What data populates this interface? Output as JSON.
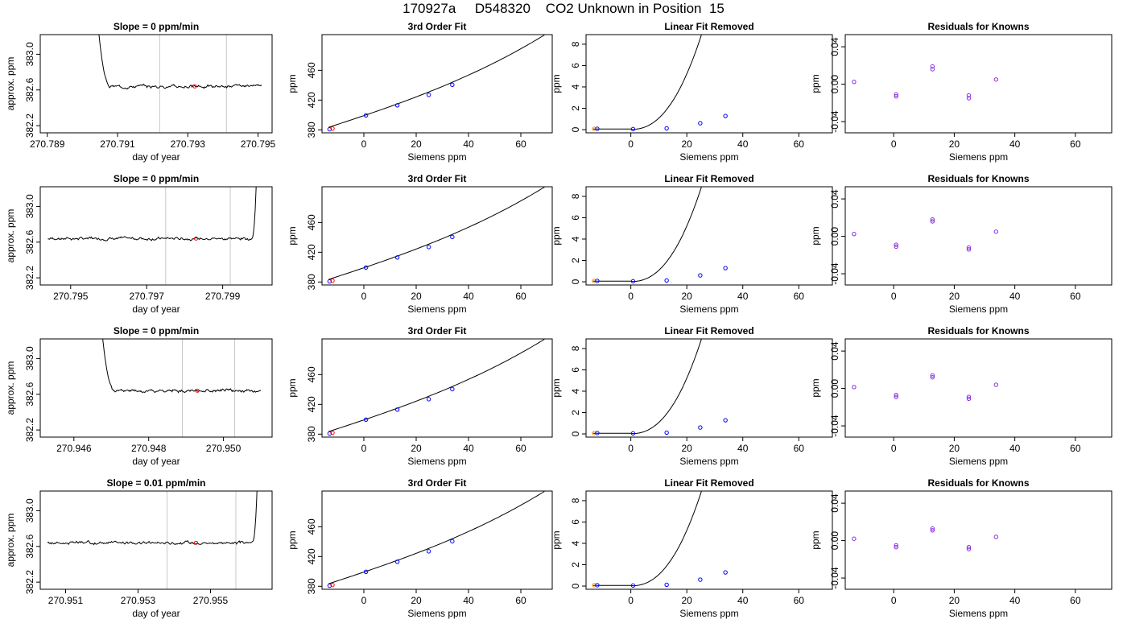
{
  "title": "170927a     D548320    CO2 Unknown in Position  15",
  "colors": {
    "trace": "#000000",
    "vline": "#c8c8c8",
    "point_blue": "#0000ff",
    "point_red": "#ff0000",
    "point_orange": "#ff8c00",
    "point_purple": "#8a2be2"
  },
  "chart_data": [
    {
      "type": "line",
      "title": "Slope =  0  ppm/min",
      "xlabel": "day of year",
      "ylabel": "approx. ppm",
      "xlim": [
        270.7888,
        270.7954
      ],
      "ylim": [
        382.12,
        383.22
      ],
      "xticks": [
        "270.789",
        "270.791",
        "270.793",
        "270.795"
      ],
      "yticks": [
        "382.2",
        "382.6",
        "383.0"
      ],
      "vlines": [
        270.7922,
        270.7941
      ],
      "trace": {
        "start": 270.7897,
        "end": 270.7951,
        "base": 382.64,
        "lead": "high",
        "edge": 270.7904,
        "seed": 3
      },
      "marker": {
        "x": 270.7932,
        "y": 382.64
      }
    },
    {
      "type": "scatter",
      "title": "3rd Order Fit",
      "xlabel": "Siemens ppm",
      "ylabel": "ppm",
      "xlim": [
        -16,
        72
      ],
      "ylim": [
        376,
        508
      ],
      "xticks": [
        "0",
        "20",
        "40",
        "60"
      ],
      "yticks": [
        "380",
        "420",
        "460"
      ],
      "curve": {
        "kind": "fit",
        "x": [
          -13.5,
          69
        ]
      },
      "points": [
        {
          "x": -13.1,
          "y": 380.8,
          "color": "#0000ff"
        },
        {
          "x": -12.0,
          "y": 381.8,
          "color": "#ff0000"
        },
        {
          "x": 0.8,
          "y": 399.5,
          "color": "#0000ff"
        },
        {
          "x": 12.8,
          "y": 413.0,
          "color": "#0000ff"
        },
        {
          "x": 24.8,
          "y": 427.0,
          "color": "#0000ff"
        },
        {
          "x": 33.8,
          "y": 440.5,
          "color": "#0000ff"
        }
      ]
    },
    {
      "type": "scatter",
      "title": "Linear Fit Removed",
      "xlabel": "Siemens ppm",
      "ylabel": "ppm",
      "xlim": [
        -16,
        72
      ],
      "ylim": [
        -0.3,
        8.9
      ],
      "xticks": [
        "0",
        "20",
        "40",
        "60"
      ],
      "yticks": [
        "0",
        "2",
        "4",
        "6",
        "8"
      ],
      "curve": {
        "kind": "cubic",
        "x": [
          -13.5,
          69
        ]
      },
      "points": [
        {
          "x": -13.1,
          "y": 0.08,
          "color": "#ff8c00"
        },
        {
          "x": -12.0,
          "y": 0.08,
          "color": "#0000ff"
        },
        {
          "x": 0.8,
          "y": 0.05,
          "color": "#0000ff"
        },
        {
          "x": 12.8,
          "y": 0.12,
          "color": "#0000ff"
        },
        {
          "x": 24.8,
          "y": 0.6,
          "color": "#0000ff"
        },
        {
          "x": 33.8,
          "y": 1.28,
          "color": "#0000ff"
        }
      ]
    },
    {
      "type": "scatter",
      "title": "Residuals for Knowns",
      "xlabel": "Siemens ppm",
      "ylabel": "ppm",
      "xlim": [
        -16,
        72
      ],
      "ylim": [
        -0.052,
        0.053
      ],
      "xticks": [
        "0",
        "20",
        "40",
        "60"
      ],
      "yticks": [
        "-0.04",
        "0.00",
        "0.04"
      ],
      "points": [
        {
          "x": -13.1,
          "y": 0.0025,
          "color": "#8a2be2"
        },
        {
          "x": 0.8,
          "y": -0.011,
          "color": "#8a2be2"
        },
        {
          "x": 0.8,
          "y": -0.013,
          "color": "#8a2be2"
        },
        {
          "x": 12.8,
          "y": 0.019,
          "color": "#8a2be2"
        },
        {
          "x": 12.8,
          "y": 0.016,
          "color": "#8a2be2"
        },
        {
          "x": 24.8,
          "y": -0.012,
          "color": "#8a2be2"
        },
        {
          "x": 24.8,
          "y": -0.015,
          "color": "#8a2be2"
        },
        {
          "x": 33.8,
          "y": 0.005,
          "color": "#8a2be2"
        }
      ]
    },
    {
      "type": "line",
      "title": "Slope =  0  ppm/min",
      "xlabel": "day of year",
      "ylabel": "approx. ppm",
      "xlim": [
        270.7942,
        270.8003
      ],
      "ylim": [
        382.12,
        383.22
      ],
      "xticks": [
        "270.795",
        "270.797",
        "270.799"
      ],
      "yticks": [
        "382.2",
        "382.6",
        "383.0"
      ],
      "vlines": [
        270.7975,
        270.7992
      ],
      "trace": {
        "start": 270.7944,
        "end": 270.7999,
        "base": 382.64,
        "lead": "none",
        "tail": "high",
        "edge": 270.7998,
        "seed": 7
      },
      "marker": {
        "x": 270.7983,
        "y": 382.64
      }
    },
    {
      "type": "scatter",
      "title": "3rd Order Fit",
      "xlabel": "Siemens ppm",
      "ylabel": "ppm",
      "xlim": [
        -16,
        72
      ],
      "ylim": [
        376,
        508
      ],
      "xticks": [
        "0",
        "20",
        "40",
        "60"
      ],
      "yticks": [
        "380",
        "420",
        "460"
      ],
      "curve": {
        "kind": "fit",
        "x": [
          -13.5,
          69
        ]
      },
      "points": [
        {
          "x": -13.1,
          "y": 380.8,
          "color": "#0000ff"
        },
        {
          "x": -12.0,
          "y": 381.8,
          "color": "#ff0000"
        },
        {
          "x": 0.8,
          "y": 399.5,
          "color": "#0000ff"
        },
        {
          "x": 12.8,
          "y": 413.0,
          "color": "#0000ff"
        },
        {
          "x": 24.8,
          "y": 427.0,
          "color": "#0000ff"
        },
        {
          "x": 33.8,
          "y": 440.5,
          "color": "#0000ff"
        }
      ]
    },
    {
      "type": "scatter",
      "title": "Linear Fit Removed",
      "xlabel": "Siemens ppm",
      "ylabel": "ppm",
      "xlim": [
        -16,
        72
      ],
      "ylim": [
        -0.3,
        8.9
      ],
      "xticks": [
        "0",
        "20",
        "40",
        "60"
      ],
      "yticks": [
        "0",
        "2",
        "4",
        "6",
        "8"
      ],
      "curve": {
        "kind": "cubic",
        "x": [
          -13.5,
          69
        ]
      },
      "points": [
        {
          "x": -13.1,
          "y": 0.08,
          "color": "#ff8c00"
        },
        {
          "x": -12.0,
          "y": 0.08,
          "color": "#0000ff"
        },
        {
          "x": 0.8,
          "y": 0.05,
          "color": "#0000ff"
        },
        {
          "x": 12.8,
          "y": 0.12,
          "color": "#0000ff"
        },
        {
          "x": 24.8,
          "y": 0.6,
          "color": "#0000ff"
        },
        {
          "x": 33.8,
          "y": 1.28,
          "color": "#0000ff"
        }
      ]
    },
    {
      "type": "scatter",
      "title": "Residuals for Knowns",
      "xlabel": "Siemens ppm",
      "ylabel": "ppm",
      "xlim": [
        -16,
        72
      ],
      "ylim": [
        -0.052,
        0.053
      ],
      "xticks": [
        "0",
        "20",
        "40",
        "60"
      ],
      "yticks": [
        "-0.04",
        "0.00",
        "0.04"
      ],
      "points": [
        {
          "x": -13.1,
          "y": 0.0025,
          "color": "#8a2be2"
        },
        {
          "x": 0.8,
          "y": -0.009,
          "color": "#8a2be2"
        },
        {
          "x": 0.8,
          "y": -0.011,
          "color": "#8a2be2"
        },
        {
          "x": 12.8,
          "y": 0.018,
          "color": "#8a2be2"
        },
        {
          "x": 12.8,
          "y": 0.016,
          "color": "#8a2be2"
        },
        {
          "x": 24.8,
          "y": -0.012,
          "color": "#8a2be2"
        },
        {
          "x": 24.8,
          "y": -0.014,
          "color": "#8a2be2"
        },
        {
          "x": 33.8,
          "y": 0.005,
          "color": "#8a2be2"
        }
      ]
    },
    {
      "type": "line",
      "title": "Slope =  0  ppm/min",
      "xlabel": "day of year",
      "ylabel": "approx. ppm",
      "xlim": [
        270.9451,
        270.9513
      ],
      "ylim": [
        382.12,
        383.22
      ],
      "xticks": [
        "270.946",
        "270.948",
        "270.950"
      ],
      "yticks": [
        "382.2",
        "382.6",
        "383.0"
      ],
      "vlines": [
        270.9489,
        270.9503
      ],
      "trace": {
        "start": 270.946,
        "end": 270.951,
        "base": 382.64,
        "lead": "high",
        "edge": 270.9467,
        "seed": 11
      },
      "marker": {
        "x": 270.9493,
        "y": 382.64
      }
    },
    {
      "type": "scatter",
      "title": "3rd Order Fit",
      "xlabel": "Siemens ppm",
      "ylabel": "ppm",
      "xlim": [
        -16,
        72
      ],
      "ylim": [
        376,
        508
      ],
      "xticks": [
        "0",
        "20",
        "40",
        "60"
      ],
      "yticks": [
        "380",
        "420",
        "460"
      ],
      "curve": {
        "kind": "fit",
        "x": [
          -13.5,
          69
        ]
      },
      "points": [
        {
          "x": -13.1,
          "y": 380.8,
          "color": "#0000ff"
        },
        {
          "x": -12.0,
          "y": 381.8,
          "color": "#ff0000"
        },
        {
          "x": 0.8,
          "y": 399.5,
          "color": "#0000ff"
        },
        {
          "x": 12.8,
          "y": 413.0,
          "color": "#0000ff"
        },
        {
          "x": 24.8,
          "y": 427.0,
          "color": "#0000ff"
        },
        {
          "x": 33.8,
          "y": 440.5,
          "color": "#0000ff"
        }
      ]
    },
    {
      "type": "scatter",
      "title": "Linear Fit Removed",
      "xlabel": "Siemens ppm",
      "ylabel": "ppm",
      "xlim": [
        -16,
        72
      ],
      "ylim": [
        -0.3,
        8.9
      ],
      "xticks": [
        "0",
        "20",
        "40",
        "60"
      ],
      "yticks": [
        "0",
        "2",
        "4",
        "6",
        "8"
      ],
      "curve": {
        "kind": "cubic",
        "x": [
          -13.5,
          69
        ]
      },
      "points": [
        {
          "x": -13.1,
          "y": 0.08,
          "color": "#ff8c00"
        },
        {
          "x": -12.0,
          "y": 0.08,
          "color": "#0000ff"
        },
        {
          "x": 0.8,
          "y": 0.05,
          "color": "#0000ff"
        },
        {
          "x": 12.8,
          "y": 0.12,
          "color": "#0000ff"
        },
        {
          "x": 24.8,
          "y": 0.6,
          "color": "#0000ff"
        },
        {
          "x": 33.8,
          "y": 1.28,
          "color": "#0000ff"
        }
      ]
    },
    {
      "type": "scatter",
      "title": "Residuals for Knowns",
      "xlabel": "Siemens ppm",
      "ylabel": "ppm",
      "xlim": [
        -16,
        72
      ],
      "ylim": [
        -0.052,
        0.053
      ],
      "xticks": [
        "0",
        "20",
        "40",
        "60"
      ],
      "yticks": [
        "-0.04",
        "0.00",
        "0.04"
      ],
      "points": [
        {
          "x": -13.1,
          "y": 0.0015,
          "color": "#8a2be2"
        },
        {
          "x": 0.8,
          "y": -0.007,
          "color": "#8a2be2"
        },
        {
          "x": 0.8,
          "y": -0.009,
          "color": "#8a2be2"
        },
        {
          "x": 12.8,
          "y": 0.014,
          "color": "#8a2be2"
        },
        {
          "x": 12.8,
          "y": 0.012,
          "color": "#8a2be2"
        },
        {
          "x": 24.8,
          "y": -0.009,
          "color": "#8a2be2"
        },
        {
          "x": 24.8,
          "y": -0.011,
          "color": "#8a2be2"
        },
        {
          "x": 33.8,
          "y": 0.004,
          "color": "#8a2be2"
        }
      ]
    },
    {
      "type": "line",
      "title": "Slope =  0.01  ppm/min",
      "xlabel": "day of year",
      "ylabel": "approx. ppm",
      "xlim": [
        270.9503,
        270.9567
      ],
      "ylim": [
        382.12,
        383.22
      ],
      "xticks": [
        "270.951",
        "270.953",
        "270.955"
      ],
      "yticks": [
        "382.2",
        "382.6",
        "383.0"
      ],
      "vlines": [
        270.9538,
        270.9557
      ],
      "trace": {
        "start": 270.9505,
        "end": 270.9563,
        "base": 382.64,
        "lead": "none",
        "tail": "high",
        "edge": 270.9562,
        "seed": 17
      },
      "marker": {
        "x": 270.9546,
        "y": 382.64
      }
    },
    {
      "type": "scatter",
      "title": "3rd Order Fit",
      "xlabel": "Siemens ppm",
      "ylabel": "ppm",
      "xlim": [
        -16,
        72
      ],
      "ylim": [
        376,
        508
      ],
      "xticks": [
        "0",
        "20",
        "40",
        "60"
      ],
      "yticks": [
        "380",
        "420",
        "460"
      ],
      "curve": {
        "kind": "fit",
        "x": [
          -13.5,
          69
        ]
      },
      "points": [
        {
          "x": -13.1,
          "y": 380.8,
          "color": "#0000ff"
        },
        {
          "x": -12.0,
          "y": 381.8,
          "color": "#ff0000"
        },
        {
          "x": 0.8,
          "y": 399.5,
          "color": "#0000ff"
        },
        {
          "x": 12.8,
          "y": 413.0,
          "color": "#0000ff"
        },
        {
          "x": 24.8,
          "y": 427.0,
          "color": "#0000ff"
        },
        {
          "x": 33.8,
          "y": 440.5,
          "color": "#0000ff"
        }
      ]
    },
    {
      "type": "scatter",
      "title": "Linear Fit Removed",
      "xlabel": "Siemens ppm",
      "ylabel": "ppm",
      "xlim": [
        -16,
        72
      ],
      "ylim": [
        -0.3,
        8.9
      ],
      "xticks": [
        "0",
        "20",
        "40",
        "60"
      ],
      "yticks": [
        "0",
        "2",
        "4",
        "6",
        "8"
      ],
      "curve": {
        "kind": "cubic",
        "x": [
          -13.5,
          69
        ]
      },
      "points": [
        {
          "x": -13.1,
          "y": 0.08,
          "color": "#ff8c00"
        },
        {
          "x": -12.0,
          "y": 0.08,
          "color": "#0000ff"
        },
        {
          "x": 0.8,
          "y": 0.05,
          "color": "#0000ff"
        },
        {
          "x": 12.8,
          "y": 0.12,
          "color": "#0000ff"
        },
        {
          "x": 24.8,
          "y": 0.6,
          "color": "#0000ff"
        },
        {
          "x": 33.8,
          "y": 1.28,
          "color": "#0000ff"
        }
      ]
    },
    {
      "type": "scatter",
      "title": "Residuals for Knowns",
      "xlabel": "Siemens ppm",
      "ylabel": "ppm",
      "xlim": [
        -16,
        72
      ],
      "ylim": [
        -0.052,
        0.053
      ],
      "xticks": [
        "0",
        "20",
        "40",
        "60"
      ],
      "yticks": [
        "-0.04",
        "0.00",
        "0.04"
      ],
      "points": [
        {
          "x": -13.1,
          "y": 0.002,
          "color": "#8a2be2"
        },
        {
          "x": 0.8,
          "y": -0.005,
          "color": "#8a2be2"
        },
        {
          "x": 0.8,
          "y": -0.007,
          "color": "#8a2be2"
        },
        {
          "x": 12.8,
          "y": 0.013,
          "color": "#8a2be2"
        },
        {
          "x": 12.8,
          "y": 0.011,
          "color": "#8a2be2"
        },
        {
          "x": 24.8,
          "y": -0.007,
          "color": "#8a2be2"
        },
        {
          "x": 24.8,
          "y": -0.009,
          "color": "#8a2be2"
        },
        {
          "x": 33.8,
          "y": 0.004,
          "color": "#8a2be2"
        }
      ]
    }
  ]
}
